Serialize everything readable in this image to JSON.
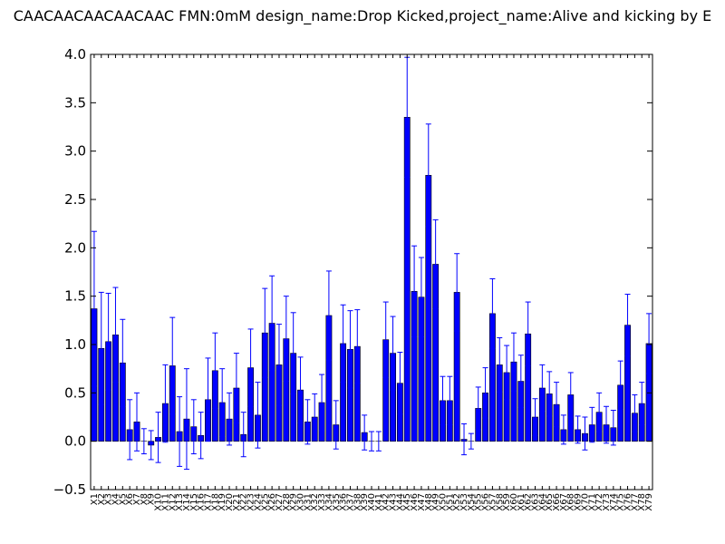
{
  "chart_data": {
    "type": "bar",
    "title": "CAACAACAACAACAAC  FMN:0mM  design_name:Drop Kicked,project_name:Alive and kicking by E",
    "xlabel": "",
    "ylabel": "",
    "ylim": [
      -0.5,
      4.0
    ],
    "yticks": [
      "−0.5",
      "0.0",
      "0.5",
      "1.0",
      "1.5",
      "2.0",
      "2.5",
      "3.0",
      "3.5",
      "4.0"
    ],
    "grid": false,
    "bar_color": "#0000ff",
    "error_color": "#0000ff",
    "categories": [
      "X1",
      "X2",
      "X3",
      "X4",
      "X5",
      "X6",
      "X7",
      "X8",
      "X9",
      "X10",
      "X11",
      "X12",
      "X13",
      "X14",
      "X15",
      "X16",
      "X17",
      "X18",
      "X19",
      "X20",
      "X21",
      "X22",
      "X23",
      "X24",
      "X25",
      "X26",
      "X27",
      "X28",
      "X29",
      "X30",
      "X31",
      "X32",
      "X33",
      "X34",
      "X35",
      "X36",
      "X37",
      "X38",
      "X39",
      "X40",
      "X41",
      "X42",
      "X43",
      "X44",
      "X45",
      "X46",
      "X47",
      "X48",
      "X49",
      "X50",
      "X51",
      "X52",
      "X53",
      "X54",
      "X55",
      "X56",
      "X57",
      "X58",
      "X59",
      "X60",
      "X61",
      "X62",
      "X63",
      "X64",
      "X65",
      "X66",
      "X67",
      "X68",
      "X69",
      "X70",
      "X71",
      "X72",
      "X73",
      "X74",
      "X75",
      "X76",
      "X77",
      "X78",
      "X79"
    ],
    "values": [
      1.37,
      0.96,
      1.03,
      1.1,
      0.81,
      0.12,
      0.2,
      0.0,
      -0.04,
      0.04,
      0.39,
      0.78,
      0.1,
      0.23,
      0.15,
      0.06,
      0.43,
      0.73,
      0.4,
      0.23,
      0.55,
      0.07,
      0.76,
      0.27,
      1.12,
      1.22,
      0.79,
      1.06,
      0.91,
      0.53,
      0.2,
      0.25,
      0.4,
      1.3,
      0.17,
      1.01,
      0.95,
      0.98,
      0.09,
      0.0,
      0.0,
      1.05,
      0.91,
      0.6,
      3.35,
      1.55,
      1.49,
      2.75,
      1.83,
      0.42,
      0.42,
      1.54,
      0.02,
      0.0,
      0.34,
      0.5,
      1.32,
      0.79,
      0.71,
      0.82,
      0.62,
      1.11,
      0.25,
      0.55,
      0.49,
      0.38,
      0.12,
      0.48,
      0.12,
      0.08,
      0.17,
      0.3,
      0.17,
      0.14,
      0.58,
      1.2,
      0.29,
      0.39,
      1.01
    ],
    "errors": [
      0.8,
      0.58,
      0.5,
      0.49,
      0.45,
      0.31,
      0.3,
      0.13,
      0.15,
      0.26,
      0.4,
      0.5,
      0.36,
      0.52,
      0.28,
      0.24,
      0.43,
      0.39,
      0.35,
      0.27,
      0.36,
      0.23,
      0.4,
      0.34,
      0.46,
      0.49,
      0.42,
      0.44,
      0.42,
      0.34,
      0.23,
      0.24,
      0.29,
      0.46,
      0.25,
      0.4,
      0.4,
      0.38,
      0.18,
      0.1,
      0.1,
      0.39,
      0.38,
      0.32,
      0.62,
      0.47,
      0.41,
      0.53,
      0.46,
      0.25,
      0.25,
      0.4,
      0.16,
      0.08,
      0.22,
      0.26,
      0.36,
      0.28,
      0.28,
      0.3,
      0.27,
      0.33,
      0.19,
      0.24,
      0.23,
      0.23,
      0.15,
      0.23,
      0.14,
      0.17,
      0.18,
      0.2,
      0.19,
      0.18,
      0.25,
      0.32,
      0.19,
      0.22,
      0.31
    ]
  }
}
